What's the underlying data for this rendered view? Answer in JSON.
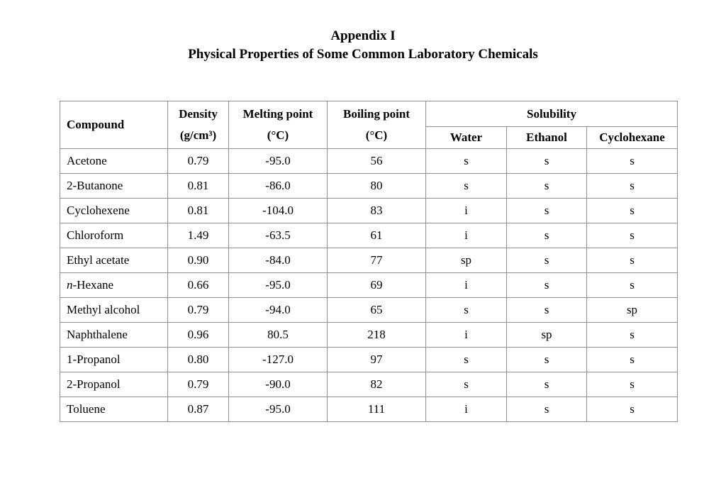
{
  "page": {
    "title_line1": "Appendix I",
    "title_line2": "Physical Properties of Some Common Laboratory Chemicals"
  },
  "table": {
    "headers": {
      "compound": "Compound",
      "density_line1": "Density",
      "density_line2": "(g/cm³)",
      "melting_line1": "Melting point",
      "melting_line2": "(°C)",
      "boiling_line1": "Boiling point",
      "boiling_line2": "(°C)",
      "solubility": "Solubility",
      "water": "Water",
      "ethanol": "Ethanol",
      "cyclohexane": "Cyclohexane"
    },
    "rows": [
      {
        "compound": "Acetone",
        "density": "0.79",
        "melting_point": "-95.0",
        "boiling_point": "56",
        "water": "s",
        "ethanol": "s",
        "cyclohexane": "s"
      },
      {
        "compound": "2-Butanone",
        "density": "0.81",
        "melting_point": "-86.0",
        "boiling_point": "80",
        "water": "s",
        "ethanol": "s",
        "cyclohexane": "s"
      },
      {
        "compound": "Cyclohexene",
        "density": "0.81",
        "melting_point": "-104.0",
        "boiling_point": "83",
        "water": "i",
        "ethanol": "s",
        "cyclohexane": "s"
      },
      {
        "compound": "Chloroform",
        "density": "1.49",
        "melting_point": "-63.5",
        "boiling_point": "61",
        "water": "i",
        "ethanol": "s",
        "cyclohexane": "s"
      },
      {
        "compound": "Ethyl acetate",
        "density": "0.90",
        "melting_point": "-84.0",
        "boiling_point": "77",
        "water": "sp",
        "ethanol": "s",
        "cyclohexane": "s"
      },
      {
        "compound": "n-Hexane",
        "italic_prefix": "n",
        "density": "0.66",
        "melting_point": "-95.0",
        "boiling_point": "69",
        "water": "i",
        "ethanol": "s",
        "cyclohexane": "s"
      },
      {
        "compound": "Methyl alcohol",
        "density": "0.79",
        "melting_point": "-94.0",
        "boiling_point": "65",
        "water": "s",
        "ethanol": "s",
        "cyclohexane": "sp"
      },
      {
        "compound": "Naphthalene",
        "density": "0.96",
        "melting_point": "80.5",
        "boiling_point": "218",
        "water": "i",
        "ethanol": "sp",
        "cyclohexane": "s"
      },
      {
        "compound": "1-Propanol",
        "density": "0.80",
        "melting_point": "-127.0",
        "boiling_point": "97",
        "water": "s",
        "ethanol": "s",
        "cyclohexane": "s"
      },
      {
        "compound": "2-Propanol",
        "density": "0.79",
        "melting_point": "-90.0",
        "boiling_point": "82",
        "water": "s",
        "ethanol": "s",
        "cyclohexane": "s"
      },
      {
        "compound": "Toluene",
        "density": "0.87",
        "melting_point": "-95.0",
        "boiling_point": "111",
        "water": "i",
        "ethanol": "s",
        "cyclohexane": "s"
      }
    ]
  },
  "colors": {
    "border": "#8f8f8f",
    "text": "#000000",
    "background": "#ffffff"
  }
}
